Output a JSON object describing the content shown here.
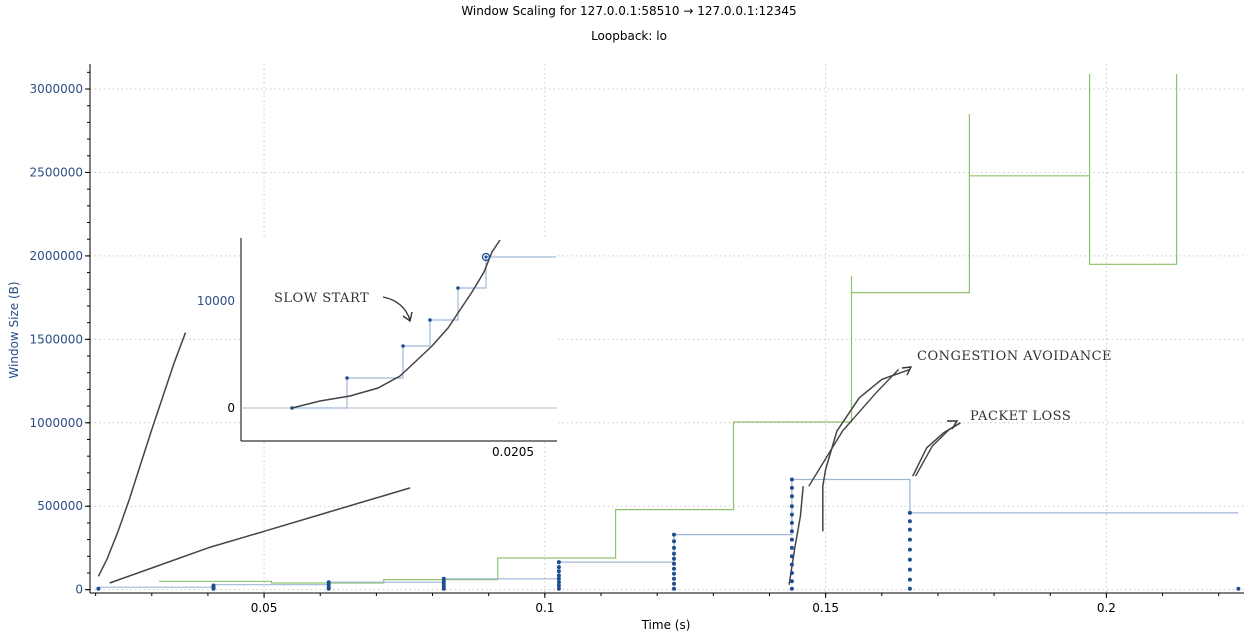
{
  "chart_data": {
    "type": "line",
    "title": "Window Scaling for 127.0.0.1:58510 → 127.0.0.1:12345",
    "subtitle": "Loopback: lo",
    "xlabel": "Time (s)",
    "ylabel": "Window Size (B)",
    "xlim": [
      0.019,
      0.2245
    ],
    "ylim": [
      -20000,
      3150000
    ],
    "x_ticks": [
      0.05,
      0.1,
      0.15,
      0.2
    ],
    "x_tick_labels": [
      "0.05",
      "0.1",
      "0.15",
      "0.2"
    ],
    "y_ticks": [
      0,
      500000,
      1000000,
      1500000,
      2000000,
      2500000,
      3000000
    ],
    "y_tick_labels": [
      "0",
      "500000",
      "1000000",
      "1500000",
      "2000000",
      "2500000",
      "3000000"
    ],
    "grid": true,
    "series": [
      {
        "color": "#8fc36b",
        "style": "step",
        "x": [
          0.0313,
          0.0513,
          0.0513,
          0.0713,
          0.0713,
          0.0916,
          0.0916,
          0.1126,
          0.1126,
          0.1336,
          0.1336,
          0.1546,
          0.1546,
          0.1546,
          0.1546,
          0.1756,
          0.1756,
          0.1756,
          0.1756,
          0.197,
          0.197,
          0.197,
          0.197,
          0.2125,
          0.2125
        ],
        "y": [
          50000,
          50000,
          40000,
          40000,
          60000,
          60000,
          190000,
          190000,
          480000,
          480000,
          1005000,
          1005000,
          1880000,
          1880000,
          1780000,
          1780000,
          2850000,
          2850000,
          2480000,
          2480000,
          3090000,
          3090000,
          1950000,
          1950000,
          3090000
        ]
      },
      {
        "color": "#9fb7d6",
        "style": "step",
        "x": [
          0.0205,
          0.041,
          0.041,
          0.0615,
          0.0615,
          0.082,
          0.082,
          0.1025,
          0.1025,
          0.123,
          0.123,
          0.144,
          0.144,
          0.165,
          0.165,
          0.2235
        ],
        "y": [
          15000,
          15000,
          30000,
          30000,
          45000,
          45000,
          65000,
          65000,
          165000,
          165000,
          330000,
          330000,
          660000,
          660000,
          460000,
          460000
        ]
      }
    ],
    "points": {
      "color": "#1f4e8c",
      "x": [
        0.0205,
        0.041,
        0.041,
        0.041,
        0.0615,
        0.0615,
        0.0615,
        0.0615,
        0.082,
        0.082,
        0.082,
        0.082,
        0.082,
        0.1025,
        0.1025,
        0.1025,
        0.1025,
        0.1025,
        0.1025,
        0.1025,
        0.1025,
        0.123,
        0.123,
        0.123,
        0.123,
        0.123,
        0.123,
        0.123,
        0.123,
        0.123,
        0.123,
        0.123,
        0.144,
        0.144,
        0.144,
        0.144,
        0.144,
        0.144,
        0.144,
        0.144,
        0.144,
        0.144,
        0.144,
        0.144,
        0.144,
        0.144,
        0.165,
        0.165,
        0.165,
        0.165,
        0.165,
        0.165,
        0.165,
        0.165,
        0.165,
        0.2235
      ],
      "y": [
        5000,
        5000,
        15000,
        25000,
        5000,
        15000,
        30000,
        45000,
        5000,
        20000,
        35000,
        50000,
        65000,
        5000,
        25000,
        45000,
        65000,
        85000,
        110000,
        135000,
        165000,
        5000,
        35000,
        65000,
        95000,
        125000,
        155000,
        185000,
        215000,
        250000,
        290000,
        330000,
        5000,
        50000,
        100000,
        150000,
        200000,
        250000,
        300000,
        350000,
        400000,
        450000,
        500000,
        560000,
        610000,
        660000,
        5000,
        60000,
        120000,
        180000,
        240000,
        300000,
        360000,
        410000,
        460000,
        5000
      ]
    },
    "bytes_curves": [
      {
        "color": "#444444",
        "x": [
          0.0205,
          0.022,
          0.024,
          0.026,
          0.028,
          0.03,
          0.032,
          0.034,
          0.036
        ],
        "y": [
          80000,
          180000,
          350000,
          540000,
          750000,
          960000,
          1160000,
          1360000,
          1540000
        ]
      },
      {
        "color": "#444444",
        "x": [
          0.0225,
          0.03,
          0.04,
          0.05,
          0.06,
          0.07,
          0.076
        ],
        "y": [
          40000,
          130000,
          250000,
          350000,
          450000,
          550000,
          610000
        ]
      },
      {
        "color": "#444444",
        "x": [
          0.1435,
          0.1445,
          0.1455,
          0.146
        ],
        "y": [
          30000,
          250000,
          440000,
          620000
        ]
      },
      {
        "color": "#444444",
        "x": [
          0.1495,
          0.1495,
          0.15,
          0.152,
          0.156,
          0.16,
          0.165
        ],
        "y": [
          350000,
          620000,
          720000,
          950000,
          1150000,
          1260000,
          1320000
        ]
      },
      {
        "color": "#444444",
        "x": [
          0.1655,
          0.168,
          0.171,
          0.174
        ],
        "y": [
          680000,
          850000,
          940000,
          1000000
        ]
      }
    ],
    "annotations": [
      {
        "text": "SLOW  START"
      },
      {
        "text": "CONGESTION  AVOIDANCE"
      },
      {
        "text": "PACKET  LOSS"
      }
    ],
    "inset": {
      "x_tick_labels": [
        "0.0205"
      ],
      "y_tick_labels": [
        "0",
        "10000"
      ]
    }
  }
}
